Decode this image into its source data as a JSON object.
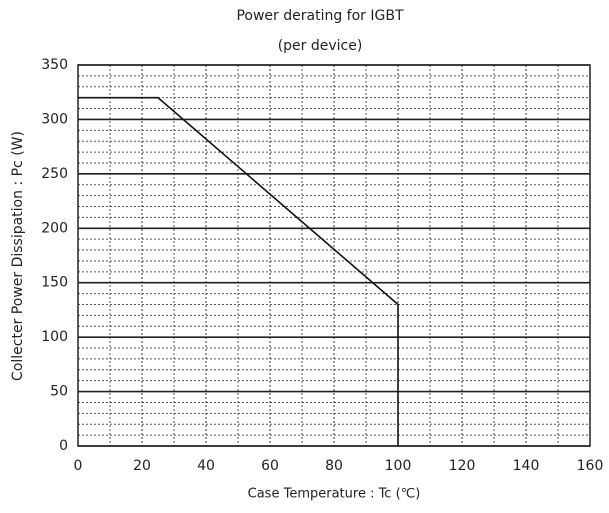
{
  "chart_data": {
    "type": "line",
    "title": "Power derating for IGBT",
    "subtitle": "(per  device)",
    "x_label": "Case Temperature : Tc (℃)",
    "y_label": "Collecter Power Dissipation : Pc (W)",
    "x": [
      0,
      25,
      100,
      100
    ],
    "values": [
      320,
      320,
      130,
      0
    ],
    "color": "#111111",
    "xlim": [
      0,
      160
    ],
    "xticks": [
      0,
      20,
      40,
      60,
      80,
      100,
      120,
      140,
      160
    ],
    "ylim": [
      0,
      350
    ],
    "yticks": [
      0,
      50,
      100,
      150,
      200,
      250,
      300,
      350
    ],
    "grid": true,
    "minor_grid": {
      "x": 2,
      "y": 5
    }
  }
}
